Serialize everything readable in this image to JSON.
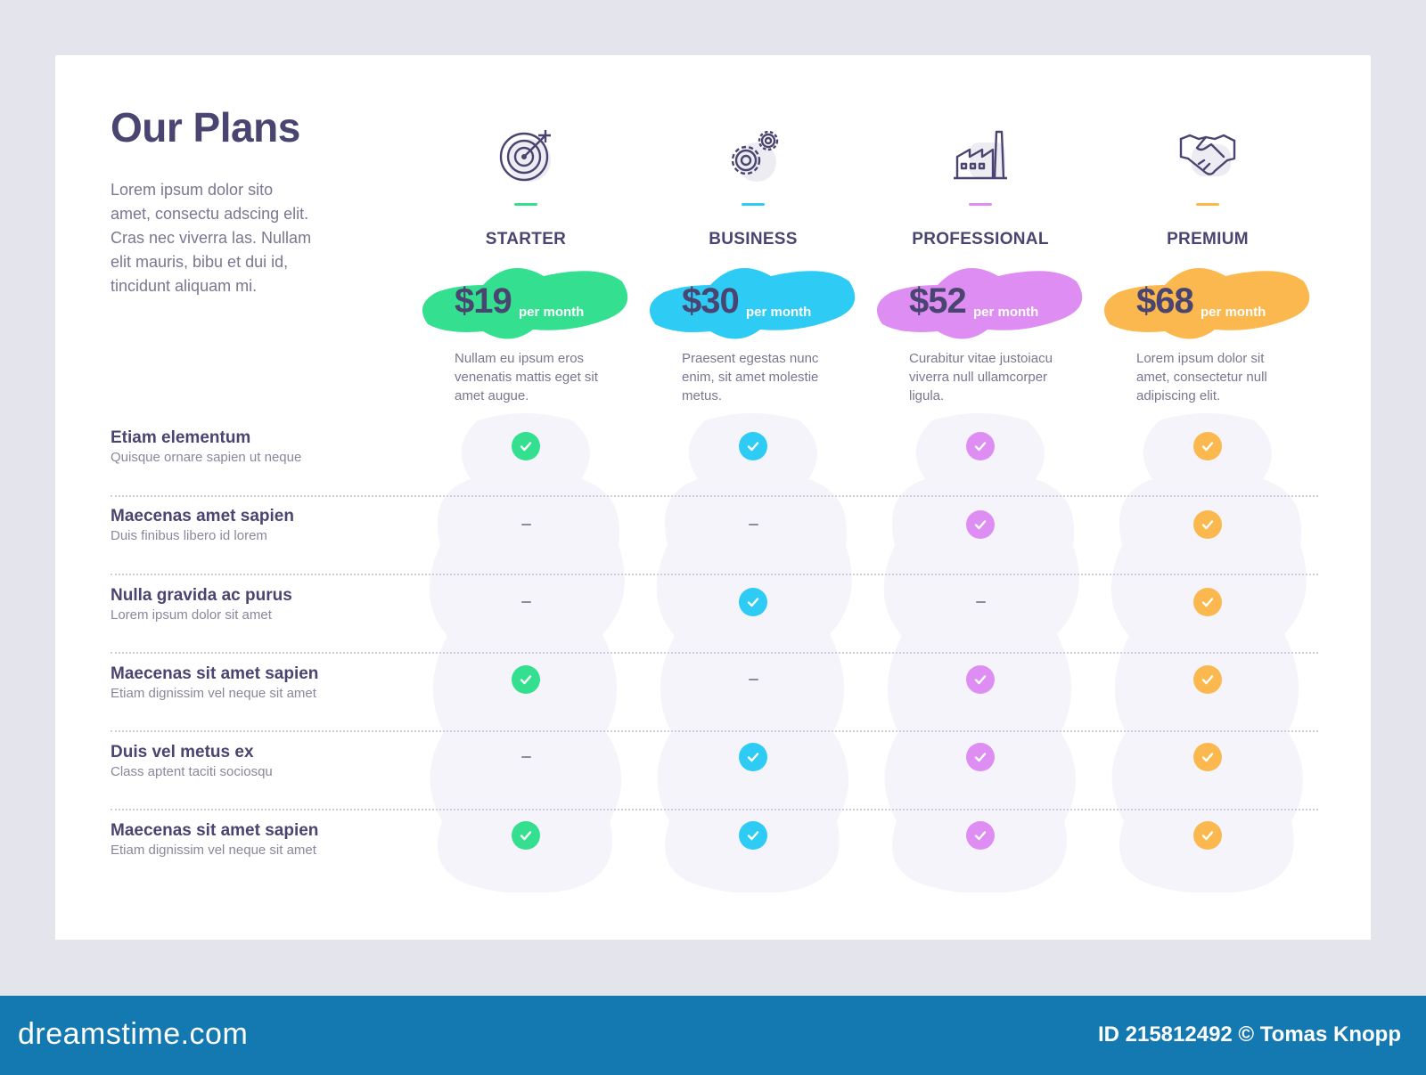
{
  "title": "Our Plans",
  "intro": "Lorem ipsum dolor sito amet, consectu adscing elit. Cras nec viverra las. Nullam elit mauris, bibu et dui id, tincidunt aliquam mi.",
  "plans": [
    {
      "name": "STARTER",
      "price": "$19",
      "per": "per month",
      "desc": "Nullam eu ipsum eros venenatis mattis eget sit amet augue.",
      "color": "#34e08f",
      "icon": "target-icon"
    },
    {
      "name": "BUSINESS",
      "price": "$30",
      "per": "per month",
      "desc": "Praesent egestas nunc enim, sit amet molestie metus.",
      "color": "#2ecbf5",
      "icon": "gears-icon"
    },
    {
      "name": "PROFESSIONAL",
      "price": "$52",
      "per": "per month",
      "desc": "Curabitur vitae justoiacu viverra null ullamcorper ligula.",
      "color": "#de8ef2",
      "icon": "factory-icon"
    },
    {
      "name": "PREMIUM",
      "price": "$68",
      "per": "per month",
      "desc": "Lorem ipsum dolor sit amet, consectetur null adipiscing elit.",
      "color": "#fbb84e",
      "icon": "handshake-icon"
    }
  ],
  "features": [
    {
      "name": "Etiam elementum",
      "sub": "Quisque ornare sapien ut neque",
      "avail": [
        true,
        true,
        true,
        true
      ]
    },
    {
      "name": "Maecenas amet sapien",
      "sub": "Duis finibus libero id lorem",
      "avail": [
        false,
        false,
        true,
        true
      ]
    },
    {
      "name": "Nulla gravida ac purus",
      "sub": "Lorem ipsum dolor sit amet",
      "avail": [
        false,
        true,
        false,
        true
      ]
    },
    {
      "name": "Maecenas sit amet sapien",
      "sub": "Etiam dignissim vel neque sit amet",
      "avail": [
        true,
        false,
        true,
        true
      ]
    },
    {
      "name": "Duis vel metus ex",
      "sub": "Class aptent taciti sociosqu",
      "avail": [
        false,
        true,
        true,
        true
      ]
    },
    {
      "name": "Maecenas sit amet sapien",
      "sub": "Etiam dignissim vel neque sit amet",
      "avail": [
        true,
        true,
        true,
        true
      ]
    }
  ],
  "footer": {
    "logo": "dreamstime.com",
    "credit": "ID 215812492 © Tomas Knopp"
  }
}
